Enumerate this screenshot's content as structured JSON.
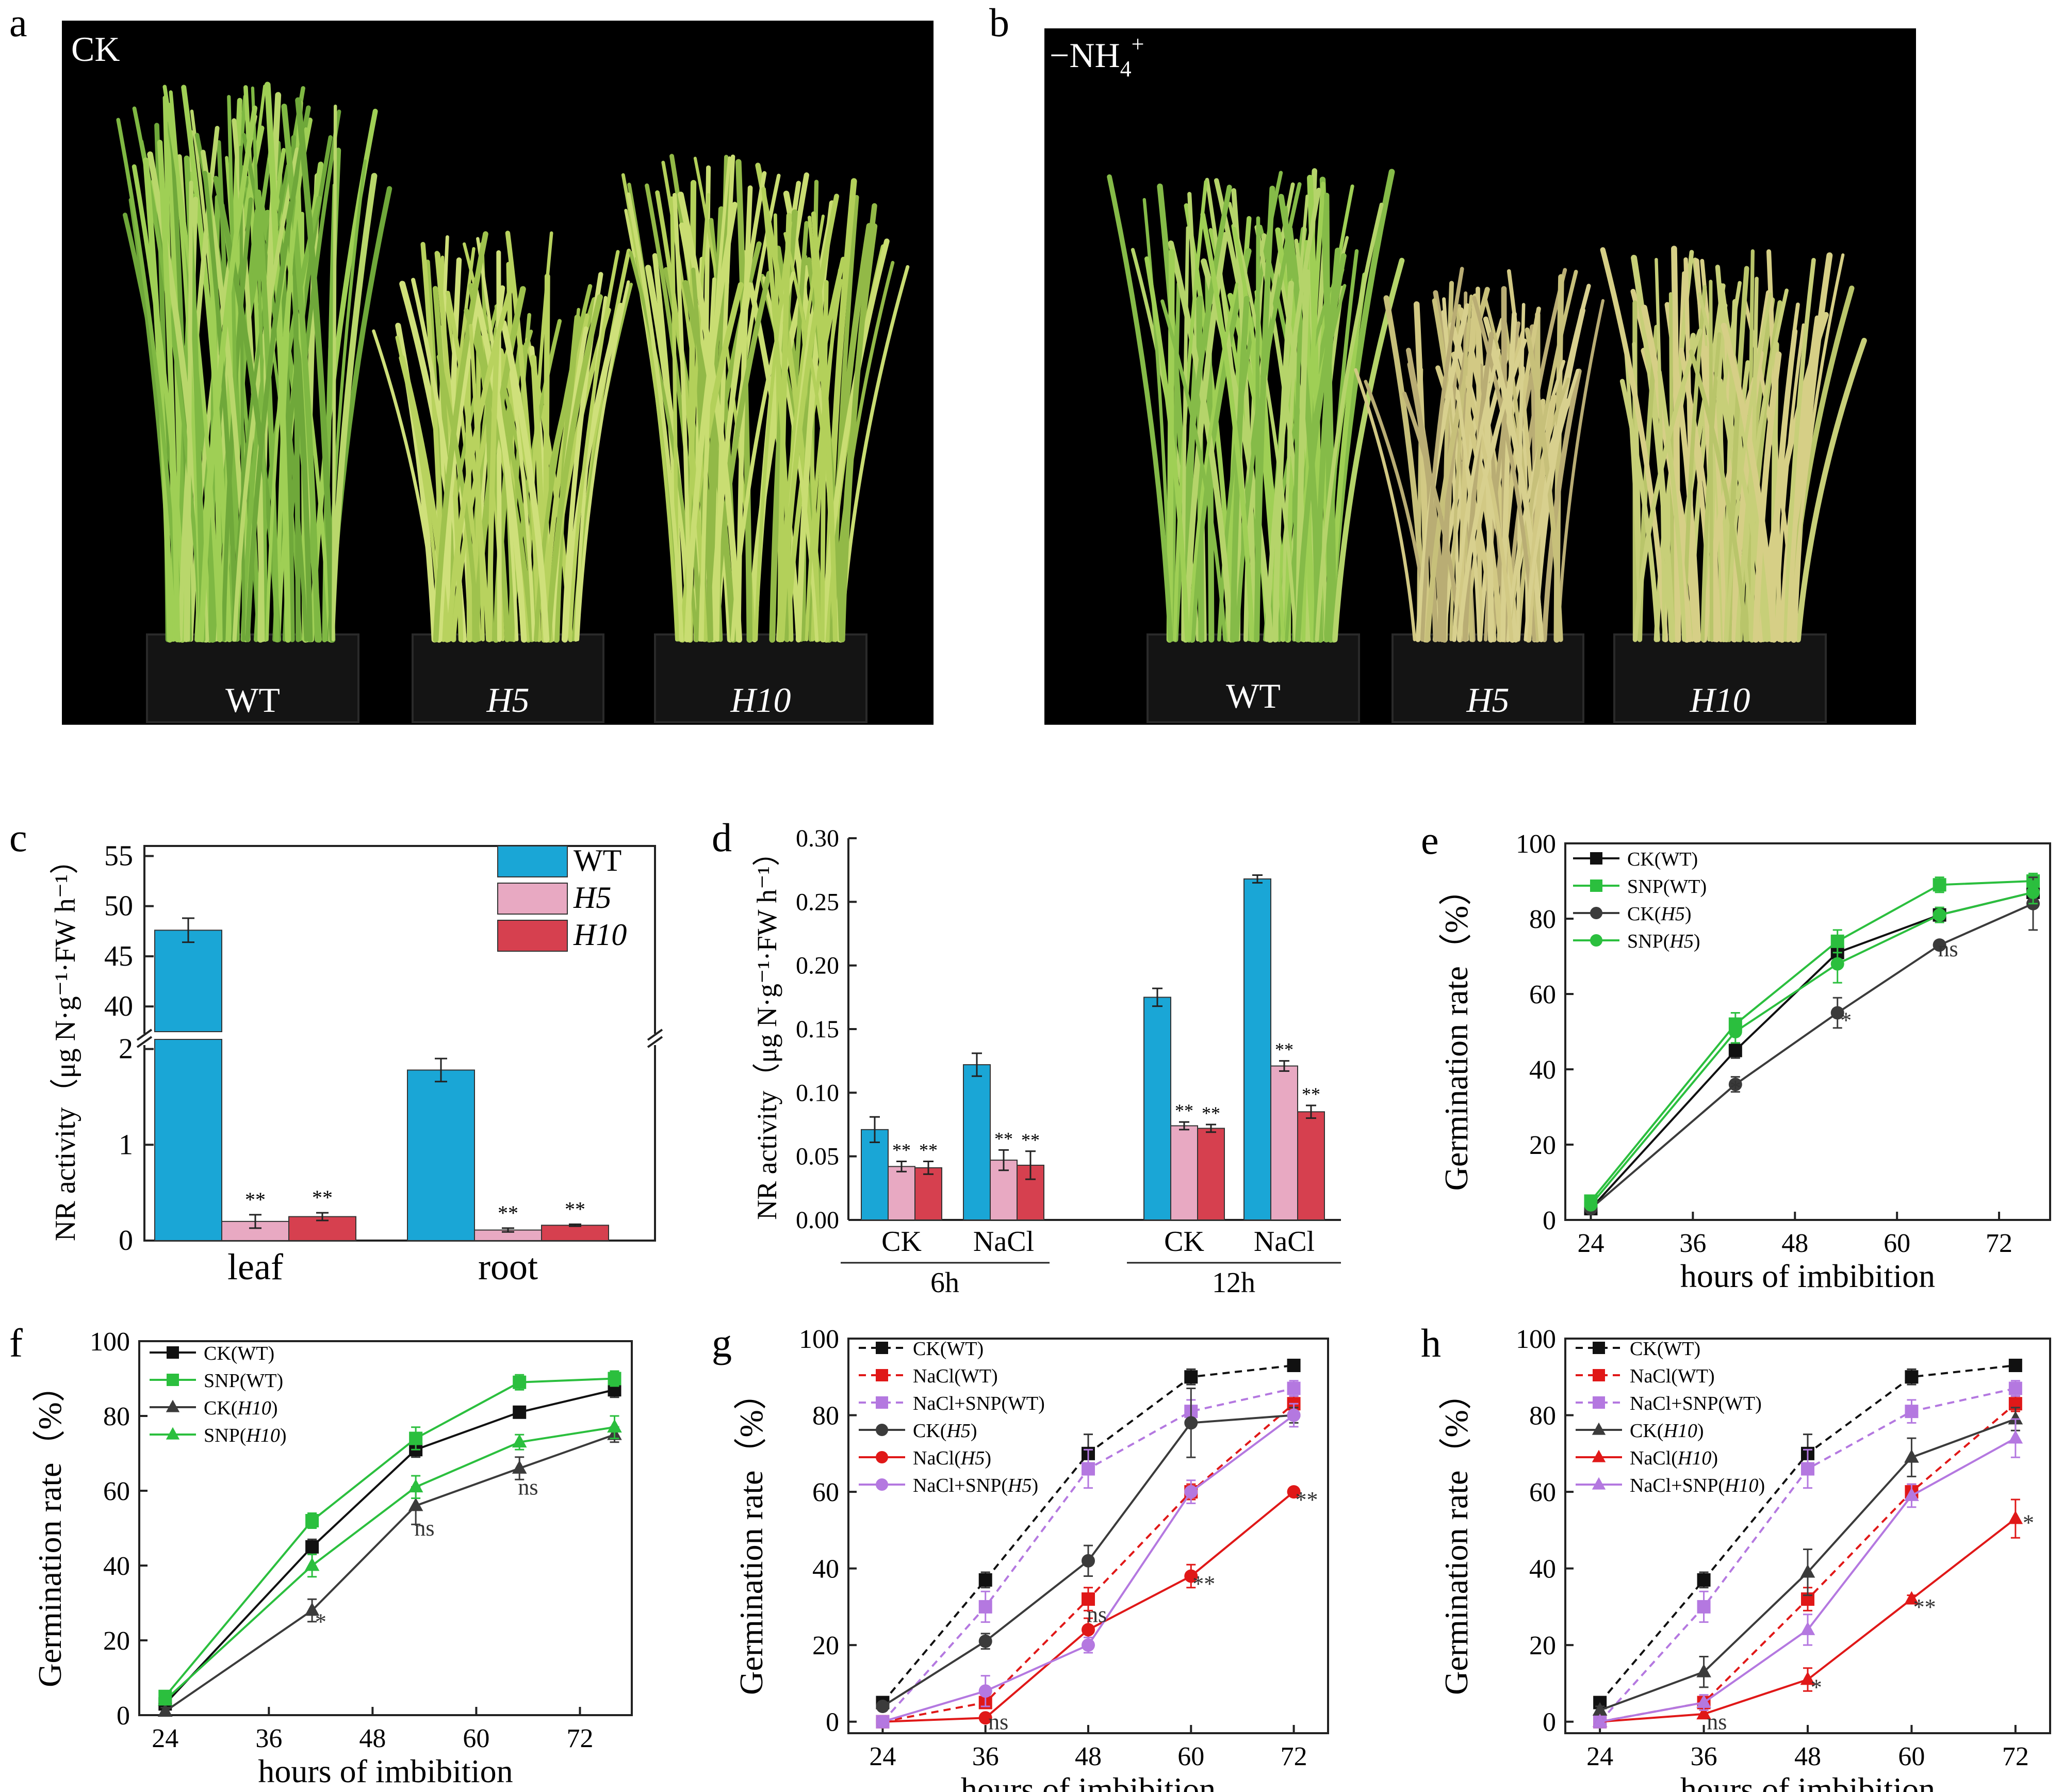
{
  "colors": {
    "blue": "#1aa6d6",
    "pink": "#e8a9c2",
    "red": "#d6404f",
    "black": "#111111",
    "green": "#2bbf3e",
    "gray": "#3b3b3b",
    "violet": "#b478e0",
    "brightred": "#e01818",
    "photo_bg": "#000000"
  },
  "photos": [
    {
      "letter": "a",
      "tag": "CK",
      "labels": [
        "WT",
        "H5",
        "H10"
      ]
    },
    {
      "letter": "b",
      "tag_main": "−NH",
      "tag_sub": "4",
      "tag_sup": "+",
      "labels": [
        "WT",
        "H5",
        "H10"
      ]
    }
  ],
  "chart_data": [
    {
      "id": "c",
      "type": "bar",
      "letter": "c",
      "categories": [
        "leaf",
        "root"
      ],
      "series": [
        {
          "name": "WT",
          "values": [
            47.6,
            1.78
          ],
          "err": [
            1.2,
            0.12
          ]
        },
        {
          "name": "H5",
          "values": [
            0.2,
            0.11
          ],
          "err": [
            0.07,
            0.02
          ]
        },
        {
          "name": "H10",
          "values": [
            0.25,
            0.16
          ],
          "err": [
            0.04,
            0.01
          ]
        }
      ],
      "sig": [
        [
          "",
          "",
          ""
        ],
        [
          "",
          "**",
          "**"
        ],
        [
          "",
          "**",
          "**"
        ]
      ],
      "sig_by_cat": [
        [
          "",
          "**",
          "**"
        ],
        [
          "",
          "**",
          "**"
        ]
      ],
      "ylabel": "NR activity（μg N·g⁻¹·FW h⁻¹）",
      "axis_break": [
        2.1,
        38
      ],
      "yticks_lower": [
        "0",
        "1",
        "2"
      ],
      "yticks_upper": [
        "40",
        "45",
        "50",
        "55"
      ],
      "ylim_lower": [
        0,
        2.1
      ],
      "ylim_upper": [
        38,
        56
      ],
      "legend": [
        "WT",
        "H5",
        "H10"
      ]
    },
    {
      "id": "d",
      "type": "bar",
      "letter": "d",
      "groups": [
        "CK",
        "NaCl",
        "CK",
        "NaCl"
      ],
      "time_labels": [
        "6h",
        "12h"
      ],
      "series": [
        {
          "name": "WT",
          "values": [
            0.071,
            0.122,
            0.175,
            0.268
          ],
          "err": [
            0.01,
            0.009,
            0.007,
            0.003
          ]
        },
        {
          "name": "H5",
          "values": [
            0.042,
            0.047,
            0.074,
            0.121
          ],
          "err": [
            0.004,
            0.008,
            0.003,
            0.004
          ]
        },
        {
          "name": "H10",
          "values": [
            0.041,
            0.043,
            0.072,
            0.085
          ],
          "err": [
            0.005,
            0.011,
            0.003,
            0.005
          ]
        }
      ],
      "sig": [
        [
          "",
          "**",
          "**"
        ],
        [
          "",
          "**",
          "**"
        ],
        [
          "",
          "**",
          "**"
        ],
        [
          "",
          "**",
          "**"
        ]
      ],
      "ylabel": "NR activity（μg N·g⁻¹·FW h⁻¹）",
      "ylim": [
        0,
        0.3
      ],
      "yticks": [
        "0.00",
        "0.05",
        "0.10",
        "0.15",
        "0.20",
        "0.25",
        "0.30"
      ]
    },
    {
      "id": "e",
      "type": "line",
      "letter": "e",
      "xlabel": "hours of imbibition",
      "ylabel": "Germination rate（%）",
      "xlim": [
        21,
        78
      ],
      "ylim": [
        0,
        100
      ],
      "xticks": [
        "24",
        "36",
        "48",
        "60",
        "72"
      ],
      "yticks": [
        "0",
        "20",
        "40",
        "60",
        "80",
        "100"
      ],
      "x": [
        24,
        41,
        53,
        65,
        76
      ],
      "series": [
        {
          "name": "CK(WT)",
          "name_plain": "CK(",
          "name_italic": "WT",
          "italic": false,
          "values": [
            3,
            45,
            71,
            81,
            87
          ],
          "err": [
            1,
            2,
            2,
            1,
            2
          ],
          "marker": "square",
          "color": "#111111",
          "dashed": false
        },
        {
          "name": "SNP(WT)",
          "values": [
            5,
            52,
            74,
            89,
            90
          ],
          "err": [
            1,
            3,
            3,
            2,
            2
          ],
          "marker": "square",
          "color": "#2bbf3e",
          "dashed": false
        },
        {
          "name": "CK(H5)",
          "values": [
            3,
            36,
            55,
            73,
            84
          ],
          "err": [
            1,
            2,
            4,
            1,
            7
          ],
          "marker": "circle",
          "color": "#3b3b3b",
          "dashed": false
        },
        {
          "name": "SNP(H5)",
          "values": [
            4,
            50,
            68,
            81,
            87
          ],
          "err": [
            1,
            3,
            5,
            2,
            3
          ],
          "marker": "circle",
          "color": "#2bbf3e",
          "dashed": false
        }
      ],
      "annotations": [
        {
          "x": 41,
          "y": 33,
          "text": "*"
        },
        {
          "x": 54,
          "y": 51,
          "text": "*"
        },
        {
          "x": 66,
          "y": 70,
          "text": "ns"
        }
      ]
    },
    {
      "id": "f",
      "type": "line",
      "letter": "f",
      "xlabel": "hours of imbibition",
      "ylabel": "Germination rate（%）",
      "xlim": [
        21,
        78
      ],
      "ylim": [
        0,
        100
      ],
      "xticks": [
        "24",
        "36",
        "48",
        "60",
        "72"
      ],
      "yticks": [
        "0",
        "20",
        "40",
        "60",
        "80",
        "100"
      ],
      "x": [
        24,
        41,
        53,
        65,
        76
      ],
      "series": [
        {
          "name": "CK(WT)",
          "values": [
            3,
            45,
            71,
            81,
            87
          ],
          "err": [
            1,
            2,
            2,
            1,
            2
          ],
          "marker": "square",
          "color": "#111111",
          "dashed": false
        },
        {
          "name": "SNP(WT)",
          "values": [
            5,
            52,
            74,
            89,
            90
          ],
          "err": [
            1,
            2,
            3,
            2,
            2
          ],
          "marker": "square",
          "color": "#2bbf3e",
          "dashed": false
        },
        {
          "name": "CK(H10)",
          "values": [
            1,
            28,
            56,
            66,
            75
          ],
          "err": [
            1,
            3,
            5,
            3,
            2
          ],
          "marker": "triangle",
          "color": "#3b3b3b",
          "dashed": false
        },
        {
          "name": "SNP(H10)",
          "values": [
            4,
            40,
            61,
            73,
            77
          ],
          "err": [
            1,
            3,
            3,
            2,
            3
          ],
          "marker": "triangle",
          "color": "#2bbf3e",
          "dashed": false
        }
      ],
      "annotations": [
        {
          "x": 42,
          "y": 23,
          "text": "*"
        },
        {
          "x": 54,
          "y": 48,
          "text": "ns"
        },
        {
          "x": 66,
          "y": 59,
          "text": "ns"
        }
      ]
    },
    {
      "id": "g",
      "type": "line",
      "letter": "g",
      "xlabel": "hours of imbibition",
      "ylabel": "Germination rate（%）",
      "xlim": [
        20,
        76
      ],
      "ylim": [
        -3,
        100
      ],
      "xticks": [
        "24",
        "36",
        "48",
        "60",
        "72"
      ],
      "yticks": [
        "0",
        "20",
        "40",
        "60",
        "80",
        "100"
      ],
      "x": [
        24,
        36,
        48,
        60,
        72
      ],
      "series": [
        {
          "name": "CK(WT)",
          "values": [
            5,
            37,
            70,
            90,
            93
          ],
          "err": [
            1,
            2,
            5,
            2,
            1
          ],
          "marker": "square",
          "color": "#111111",
          "dashed": true
        },
        {
          "name": "NaCl(WT)",
          "values": [
            0,
            5,
            32,
            60,
            83
          ],
          "err": [
            0,
            1,
            3,
            2,
            2
          ],
          "marker": "square",
          "color": "#e01818",
          "dashed": true
        },
        {
          "name": "NaCl+SNP(WT)",
          "values": [
            0,
            30,
            66,
            81,
            87
          ],
          "err": [
            0,
            4,
            5,
            3,
            2
          ],
          "marker": "square",
          "color": "#b478e0",
          "dashed": true
        },
        {
          "name": "CK(H5)",
          "values": [
            4,
            21,
            42,
            78,
            80
          ],
          "err": [
            1,
            2,
            4,
            9,
            2
          ],
          "marker": "circle",
          "color": "#3b3b3b",
          "dashed": false
        },
        {
          "name": "NaCl(H5)",
          "values": [
            0,
            1,
            24,
            38,
            60
          ],
          "err": [
            0,
            1,
            3,
            3,
            1
          ],
          "marker": "circle",
          "color": "#e01818",
          "dashed": false
        },
        {
          "name": "NaCl+SNP(H5)",
          "values": [
            0,
            8,
            20,
            60,
            80
          ],
          "err": [
            0,
            4,
            2,
            3,
            3
          ],
          "marker": "circle",
          "color": "#b478e0",
          "dashed": false
        }
      ],
      "annotations": [
        {
          "x": 37.5,
          "y": -2,
          "text": "ns"
        },
        {
          "x": 49,
          "y": 26,
          "text": "ns"
        },
        {
          "x": 61.5,
          "y": 34,
          "text": "**"
        },
        {
          "x": 73.5,
          "y": 56,
          "text": "**"
        }
      ]
    },
    {
      "id": "h",
      "type": "line",
      "letter": "h",
      "xlabel": "hours of imbibition",
      "ylabel": "Germination rate（%）",
      "xlim": [
        20,
        76
      ],
      "ylim": [
        -3,
        100
      ],
      "xticks": [
        "24",
        "36",
        "48",
        "60",
        "72"
      ],
      "yticks": [
        "0",
        "20",
        "40",
        "60",
        "80",
        "100"
      ],
      "x": [
        24,
        36,
        48,
        60,
        72
      ],
      "series": [
        {
          "name": "CK(WT)",
          "values": [
            5,
            37,
            70,
            90,
            93
          ],
          "err": [
            1,
            2,
            5,
            2,
            1
          ],
          "marker": "square",
          "color": "#111111",
          "dashed": true
        },
        {
          "name": "NaCl(WT)",
          "values": [
            0,
            5,
            32,
            60,
            83
          ],
          "err": [
            0,
            1,
            3,
            2,
            2
          ],
          "marker": "square",
          "color": "#e01818",
          "dashed": true
        },
        {
          "name": "NaCl+SNP(WT)",
          "values": [
            0,
            30,
            66,
            81,
            87
          ],
          "err": [
            0,
            4,
            5,
            3,
            2
          ],
          "marker": "square",
          "color": "#b478e0",
          "dashed": true
        },
        {
          "name": "CK(H10)",
          "values": [
            3,
            13,
            39,
            69,
            79
          ],
          "err": [
            1,
            4,
            6,
            5,
            3
          ],
          "marker": "triangle",
          "color": "#3b3b3b",
          "dashed": false
        },
        {
          "name": "NaCl(H10)",
          "values": [
            0,
            2,
            11,
            32,
            53
          ],
          "err": [
            0,
            1,
            3,
            1,
            5
          ],
          "marker": "triangle",
          "color": "#e01818",
          "dashed": false
        },
        {
          "name": "NaCl+SNP(H10)",
          "values": [
            0,
            5,
            24,
            59,
            74
          ],
          "err": [
            0,
            2,
            4,
            3,
            5
          ],
          "marker": "triangle",
          "color": "#b478e0",
          "dashed": false
        }
      ],
      "annotations": [
        {
          "x": 37.5,
          "y": -2,
          "text": "ns"
        },
        {
          "x": 49,
          "y": 7,
          "text": "*"
        },
        {
          "x": 61.5,
          "y": 28,
          "text": "**"
        },
        {
          "x": 73.5,
          "y": 50,
          "text": "*"
        }
      ]
    }
  ]
}
